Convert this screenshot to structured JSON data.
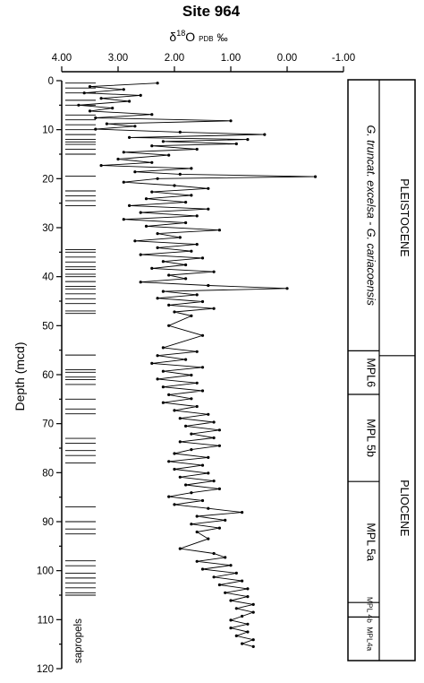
{
  "chart_data": {
    "type": "line",
    "title": "Site 964",
    "xlabel_parts": {
      "delta": "δ",
      "sup": "18",
      "elem": "O",
      "sub": "PDB",
      "unit": "‰"
    },
    "ylabel": "Depth (mcd)",
    "x_ticks": [
      "4.00",
      "3.00",
      "2.00",
      "1.00",
      "0.00",
      "-1.00"
    ],
    "y_ticks": [
      "0",
      "10",
      "20",
      "30",
      "40",
      "50",
      "60",
      "70",
      "80",
      "90",
      "100",
      "110",
      "120"
    ],
    "xlim": [
      4.0,
      -1.0
    ],
    "ylim": [
      0,
      120
    ],
    "x_reversed": true,
    "y_inverted": true,
    "grid": false,
    "series": [
      {
        "values": [
          {
            "depth": 0.5,
            "d18O": 2.3
          },
          {
            "depth": 1.2,
            "d18O": 3.5
          },
          {
            "depth": 1.8,
            "d18O": 2.9
          },
          {
            "depth": 2.5,
            "d18O": 3.6
          },
          {
            "depth": 3.0,
            "d18O": 2.6
          },
          {
            "depth": 3.6,
            "d18O": 3.3
          },
          {
            "depth": 4.2,
            "d18O": 2.8
          },
          {
            "depth": 5.0,
            "d18O": 3.7
          },
          {
            "depth": 5.6,
            "d18O": 3.1
          },
          {
            "depth": 6.2,
            "d18O": 3.5
          },
          {
            "depth": 6.9,
            "d18O": 2.4
          },
          {
            "depth": 7.6,
            "d18O": 3.4
          },
          {
            "depth": 8.2,
            "d18O": 1.0
          },
          {
            "depth": 8.8,
            "d18O": 3.2
          },
          {
            "depth": 9.3,
            "d18O": 2.7
          },
          {
            "depth": 9.9,
            "d18O": 3.4
          },
          {
            "depth": 10.5,
            "d18O": 1.9
          },
          {
            "depth": 11.0,
            "d18O": 0.4
          },
          {
            "depth": 11.6,
            "d18O": 2.8
          },
          {
            "depth": 12.0,
            "d18O": 0.7
          },
          {
            "depth": 12.4,
            "d18O": 2.2
          },
          {
            "depth": 12.9,
            "d18O": 0.9
          },
          {
            "depth": 13.3,
            "d18O": 2.4
          },
          {
            "depth": 14.0,
            "d18O": 1.6
          },
          {
            "depth": 14.6,
            "d18O": 2.9
          },
          {
            "depth": 15.2,
            "d18O": 2.1
          },
          {
            "depth": 16.0,
            "d18O": 3.0
          },
          {
            "depth": 16.7,
            "d18O": 2.4
          },
          {
            "depth": 17.3,
            "d18O": 3.3
          },
          {
            "depth": 17.9,
            "d18O": 1.7
          },
          {
            "depth": 18.6,
            "d18O": 2.7
          },
          {
            "depth": 19.1,
            "d18O": 1.9
          },
          {
            "depth": 19.6,
            "d18O": -0.5
          },
          {
            "depth": 20.0,
            "d18O": 2.3
          },
          {
            "depth": 20.7,
            "d18O": 2.9
          },
          {
            "depth": 21.4,
            "d18O": 2.0
          },
          {
            "depth": 22.0,
            "d18O": 1.4
          },
          {
            "depth": 22.7,
            "d18O": 2.4
          },
          {
            "depth": 23.4,
            "d18O": 1.7
          },
          {
            "depth": 24.1,
            "d18O": 2.5
          },
          {
            "depth": 24.8,
            "d18O": 1.8
          },
          {
            "depth": 25.5,
            "d18O": 2.8
          },
          {
            "depth": 26.2,
            "d18O": 1.4
          },
          {
            "depth": 26.9,
            "d18O": 2.6
          },
          {
            "depth": 27.6,
            "d18O": 1.6
          },
          {
            "depth": 28.3,
            "d18O": 2.9
          },
          {
            "depth": 29.0,
            "d18O": 1.8
          },
          {
            "depth": 29.7,
            "d18O": 2.5
          },
          {
            "depth": 30.5,
            "d18O": 1.2
          },
          {
            "depth": 31.2,
            "d18O": 2.3
          },
          {
            "depth": 32.0,
            "d18O": 1.9
          },
          {
            "depth": 32.7,
            "d18O": 2.7
          },
          {
            "depth": 33.4,
            "d18O": 1.6
          },
          {
            "depth": 34.1,
            "d18O": 2.3
          },
          {
            "depth": 34.8,
            "d18O": 1.7
          },
          {
            "depth": 35.5,
            "d18O": 2.6
          },
          {
            "depth": 36.2,
            "d18O": 1.5
          },
          {
            "depth": 36.9,
            "d18O": 2.2
          },
          {
            "depth": 37.6,
            "d18O": 1.8
          },
          {
            "depth": 38.3,
            "d18O": 2.4
          },
          {
            "depth": 39.0,
            "d18O": 1.3
          },
          {
            "depth": 39.7,
            "d18O": 2.1
          },
          {
            "depth": 40.4,
            "d18O": 1.8
          },
          {
            "depth": 41.1,
            "d18O": 2.6
          },
          {
            "depth": 41.8,
            "d18O": 1.4
          },
          {
            "depth": 42.4,
            "d18O": 0.0
          },
          {
            "depth": 43.0,
            "d18O": 2.2
          },
          {
            "depth": 43.7,
            "d18O": 1.6
          },
          {
            "depth": 44.4,
            "d18O": 2.3
          },
          {
            "depth": 45.1,
            "d18O": 1.5
          },
          {
            "depth": 45.8,
            "d18O": 2.1
          },
          {
            "depth": 46.5,
            "d18O": 1.3
          },
          {
            "depth": 47.2,
            "d18O": 2.0
          },
          {
            "depth": 48.0,
            "d18O": 1.7
          },
          {
            "depth": 50.0,
            "d18O": 2.1
          },
          {
            "depth": 52.0,
            "d18O": 1.5
          },
          {
            "depth": 54.5,
            "d18O": 2.2
          },
          {
            "depth": 55.3,
            "d18O": 1.6
          },
          {
            "depth": 56.1,
            "d18O": 2.3
          },
          {
            "depth": 56.9,
            "d18O": 1.8
          },
          {
            "depth": 57.7,
            "d18O": 2.4
          },
          {
            "depth": 58.5,
            "d18O": 1.5
          },
          {
            "depth": 59.3,
            "d18O": 2.2
          },
          {
            "depth": 60.1,
            "d18O": 1.7
          },
          {
            "depth": 60.9,
            "d18O": 2.3
          },
          {
            "depth": 61.7,
            "d18O": 1.6
          },
          {
            "depth": 62.5,
            "d18O": 2.2
          },
          {
            "depth": 63.3,
            "d18O": 1.5
          },
          {
            "depth": 64.1,
            "d18O": 2.1
          },
          {
            "depth": 64.9,
            "d18O": 1.7
          },
          {
            "depth": 65.7,
            "d18O": 2.2
          },
          {
            "depth": 66.5,
            "d18O": 1.6
          },
          {
            "depth": 67.3,
            "d18O": 2.0
          },
          {
            "depth": 68.1,
            "d18O": 1.4
          },
          {
            "depth": 68.9,
            "d18O": 1.9
          },
          {
            "depth": 69.7,
            "d18O": 1.3
          },
          {
            "depth": 70.5,
            "d18O": 1.8
          },
          {
            "depth": 71.3,
            "d18O": 1.2
          },
          {
            "depth": 72.1,
            "d18O": 1.7
          },
          {
            "depth": 72.9,
            "d18O": 1.3
          },
          {
            "depth": 73.7,
            "d18O": 1.9
          },
          {
            "depth": 74.5,
            "d18O": 1.2
          },
          {
            "depth": 75.3,
            "d18O": 1.7
          },
          {
            "depth": 76.1,
            "d18O": 2.0
          },
          {
            "depth": 76.9,
            "d18O": 1.4
          },
          {
            "depth": 77.7,
            "d18O": 2.1
          },
          {
            "depth": 78.5,
            "d18O": 1.5
          },
          {
            "depth": 79.3,
            "d18O": 2.0
          },
          {
            "depth": 80.1,
            "d18O": 1.4
          },
          {
            "depth": 80.9,
            "d18O": 1.9
          },
          {
            "depth": 81.7,
            "d18O": 1.3
          },
          {
            "depth": 82.5,
            "d18O": 1.8
          },
          {
            "depth": 83.3,
            "d18O": 1.2
          },
          {
            "depth": 84.1,
            "d18O": 1.7
          },
          {
            "depth": 84.9,
            "d18O": 2.1
          },
          {
            "depth": 85.7,
            "d18O": 1.5
          },
          {
            "depth": 86.5,
            "d18O": 2.0
          },
          {
            "depth": 87.3,
            "d18O": 1.4
          },
          {
            "depth": 88.1,
            "d18O": 0.8
          },
          {
            "depth": 88.9,
            "d18O": 1.6
          },
          {
            "depth": 89.7,
            "d18O": 1.1
          },
          {
            "depth": 90.5,
            "d18O": 1.7
          },
          {
            "depth": 91.3,
            "d18O": 1.2
          },
          {
            "depth": 92.1,
            "d18O": 1.6
          },
          {
            "depth": 93.5,
            "d18O": 1.4
          },
          {
            "depth": 95.5,
            "d18O": 1.9
          },
          {
            "depth": 96.5,
            "d18O": 1.3
          },
          {
            "depth": 97.3,
            "d18O": 1.1
          },
          {
            "depth": 98.1,
            "d18O": 1.6
          },
          {
            "depth": 98.9,
            "d18O": 1.0
          },
          {
            "depth": 99.7,
            "d18O": 1.5
          },
          {
            "depth": 100.5,
            "d18O": 0.9
          },
          {
            "depth": 101.3,
            "d18O": 1.3
          },
          {
            "depth": 102.1,
            "d18O": 0.8
          },
          {
            "depth": 102.9,
            "d18O": 1.2
          },
          {
            "depth": 103.7,
            "d18O": 0.7
          },
          {
            "depth": 104.5,
            "d18O": 1.1
          },
          {
            "depth": 105.3,
            "d18O": 0.7
          },
          {
            "depth": 106.1,
            "d18O": 1.0
          },
          {
            "depth": 106.9,
            "d18O": 0.6
          },
          {
            "depth": 107.7,
            "d18O": 0.9
          },
          {
            "depth": 108.5,
            "d18O": 0.6
          },
          {
            "depth": 109.3,
            "d18O": 0.8
          },
          {
            "depth": 110.1,
            "d18O": 1.0
          },
          {
            "depth": 110.9,
            "d18O": 0.7
          },
          {
            "depth": 111.7,
            "d18O": 1.0
          },
          {
            "depth": 112.5,
            "d18O": 0.7
          },
          {
            "depth": 113.3,
            "d18O": 0.9
          },
          {
            "depth": 114.1,
            "d18O": 0.6
          },
          {
            "depth": 114.9,
            "d18O": 0.8
          },
          {
            "depth": 115.5,
            "d18O": 0.6
          }
        ]
      }
    ],
    "sapropels": {
      "label": "sapropels",
      "depths": [
        0.5,
        1.5,
        2.5,
        4.0,
        5.0,
        7.0,
        8.0,
        9.0,
        10.0,
        11.0,
        12.0,
        12.5,
        13.0,
        14.0,
        15.0,
        19.5,
        22.5,
        23.5,
        24.5,
        25.5,
        34.5,
        35.0,
        36.0,
        37.0,
        38.0,
        38.5,
        39.5,
        40.0,
        41.0,
        42.0,
        42.5,
        43.5,
        44.5,
        45.5,
        47.0,
        47.5,
        56.0,
        59.0,
        59.5,
        60.5,
        61.0,
        62.0,
        65.0,
        67.0,
        68.0,
        73.0,
        74.0,
        75.5,
        76.5,
        78.0,
        87.0,
        90.0,
        91.5,
        92.5,
        98.0,
        99.0,
        100.5,
        101.5,
        102.5,
        103.5,
        104.5,
        105.0
      ]
    },
    "zones": {
      "epochs": [
        {
          "label": "PLEISTOCENE",
          "top": 0,
          "bottom": 57
        },
        {
          "label": "PLIOCENE",
          "top": 57,
          "bottom": 120
        }
      ],
      "biozones": [
        {
          "label": "G. truncat. excelsa - G. cariacoensis",
          "top": 0,
          "bottom": 56,
          "italic": true
        },
        {
          "label": "MPL6",
          "top": 56,
          "bottom": 65
        },
        {
          "label": "MPL 5b",
          "top": 65,
          "bottom": 83
        },
        {
          "label": "MPL 5a",
          "top": 83,
          "bottom": 108
        },
        {
          "label": "MPL 4b",
          "top": 108,
          "bottom": 111,
          "small": true
        },
        {
          "label": "MPL4a",
          "top": 111,
          "bottom": 120,
          "small": true
        }
      ]
    }
  }
}
